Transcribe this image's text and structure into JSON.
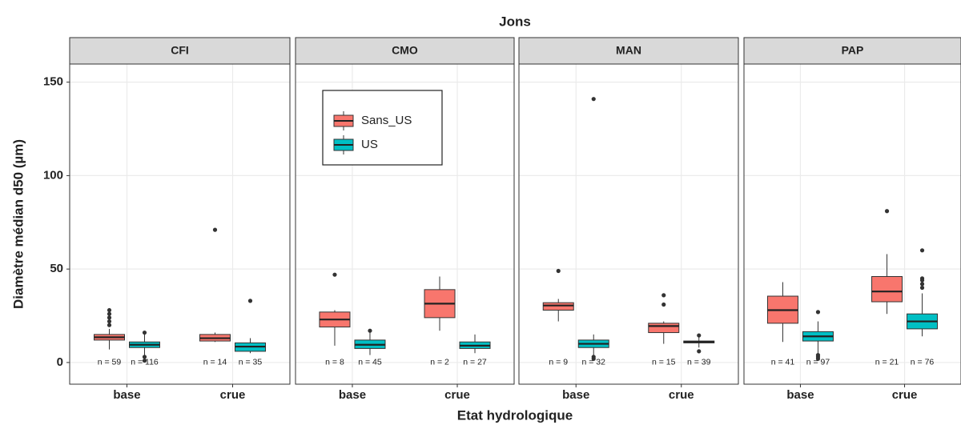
{
  "chart_data": {
    "type": "box",
    "title": "Jons",
    "x_label": "Etat hydrologique",
    "y_label": "Diamètre médian d50 (µm)",
    "ylim": [
      -11.6,
      159.7
    ],
    "yticks": [
      0,
      50,
      100,
      150
    ],
    "grid": true,
    "legend": "top-left",
    "categories": [
      "base",
      "crue"
    ],
    "series": [
      {
        "name": "Sans_US",
        "color": "#f8766d"
      },
      {
        "name": "US",
        "color": "#00bfc4"
      }
    ],
    "panels": [
      {
        "title": "CFI",
        "boxes": [
          [
            {
              "min": 7,
              "q1": 12,
              "median": 13.5,
              "q3": 15,
              "max": 18,
              "outliers": [
                20,
                22,
                24,
                26,
                28
              ],
              "n_label": "n = 59"
            },
            {
              "min": 11,
              "q1": 11.5,
              "median": 13,
              "q3": 15,
              "max": 16,
              "outliers": [
                71
              ],
              "n_label": "n = 14"
            }
          ],
          [
            {
              "min": 4,
              "q1": 8,
              "median": 9.5,
              "q3": 11,
              "max": 15,
              "outliers": [
                16,
                3,
                1
              ],
              "n_label": "n = 116"
            },
            {
              "min": 5,
              "q1": 6,
              "median": 8.5,
              "q3": 10.5,
              "max": 13,
              "outliers": [
                33
              ],
              "n_label": "n = 35"
            }
          ]
        ]
      },
      {
        "title": "CMO",
        "boxes": [
          [
            {
              "min": 9,
              "q1": 19,
              "median": 23,
              "q3": 27,
              "max": 28,
              "outliers": [
                47
              ],
              "n_label": "n = 8"
            },
            {
              "min": 17,
              "q1": 24,
              "median": 31.5,
              "q3": 39,
              "max": 46,
              "outliers": [],
              "n_label": "n = 2"
            }
          ],
          [
            {
              "min": 4,
              "q1": 7.5,
              "median": 9.5,
              "q3": 12,
              "max": 16,
              "outliers": [
                17
              ],
              "n_label": "n = 45"
            },
            {
              "min": 5,
              "q1": 7.5,
              "median": 9,
              "q3": 11,
              "max": 15,
              "outliers": [],
              "n_label": "n = 27"
            }
          ]
        ]
      },
      {
        "title": "MAN",
        "boxes": [
          [
            {
              "min": 22,
              "q1": 28,
              "median": 30.5,
              "q3": 32,
              "max": 34,
              "outliers": [
                49
              ],
              "n_label": "n = 9"
            },
            {
              "min": 10,
              "q1": 16,
              "median": 19.5,
              "q3": 21,
              "max": 22,
              "outliers": [
                31,
                36
              ],
              "n_label": "n = 15"
            }
          ],
          [
            {
              "min": 4,
              "q1": 8,
              "median": 10,
              "q3": 12,
              "max": 15,
              "outliers": [
                141,
                3,
                2
              ],
              "n_label": "n = 32"
            },
            {
              "min": 8,
              "q1": 10.5,
              "median": 11,
              "q3": 11.5,
              "max": 14,
              "outliers": [
                14.5,
                6
              ],
              "n_label": "n = 39"
            }
          ]
        ]
      },
      {
        "title": "PAP",
        "boxes": [
          [
            {
              "min": 11,
              "q1": 21,
              "median": 28,
              "q3": 35.5,
              "max": 43,
              "outliers": [],
              "n_label": "n = 41"
            },
            {
              "min": 26,
              "q1": 32.5,
              "median": 38,
              "q3": 46,
              "max": 58,
              "outliers": [
                81
              ],
              "n_label": "n = 21"
            }
          ],
          [
            {
              "min": 5,
              "q1": 11.5,
              "median": 14,
              "q3": 16.5,
              "max": 22,
              "outliers": [
                27,
                4,
                3,
                2
              ],
              "n_label": "n = 97"
            },
            {
              "min": 14,
              "q1": 18,
              "median": 22,
              "q3": 26,
              "max": 37,
              "outliers": [
                40,
                42,
                44,
                45,
                60
              ],
              "n_label": "n = 76"
            }
          ]
        ]
      }
    ]
  }
}
